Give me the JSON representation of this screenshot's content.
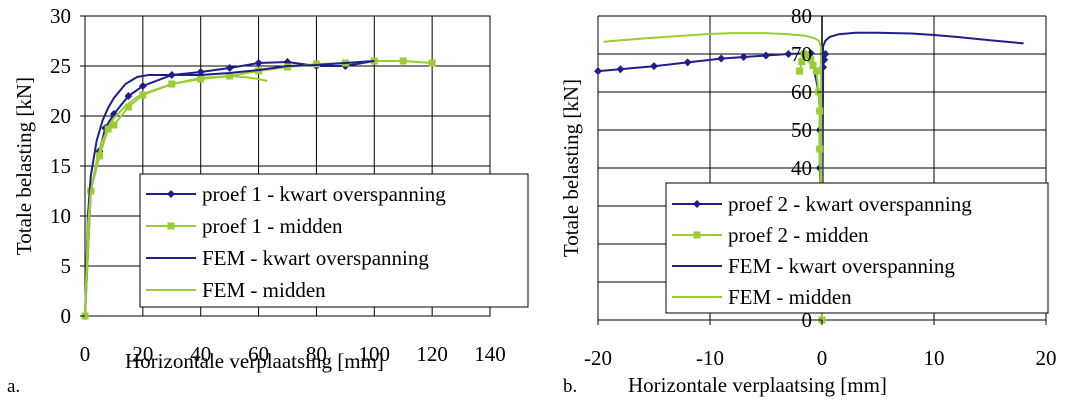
{
  "figures": {
    "a": {
      "label": "a."
    },
    "b": {
      "label": "b."
    }
  },
  "chart_data": [
    {
      "type": "line",
      "xlabel": "Horizontale verplaatsing [mm]",
      "ylabel": "Totale belasting [kN]",
      "xlim": [
        0,
        140
      ],
      "ylim": [
        0,
        30
      ],
      "xticks": [
        0,
        20,
        40,
        60,
        80,
        100,
        120,
        140
      ],
      "yticks": [
        0,
        5,
        10,
        15,
        20,
        25,
        30
      ],
      "grid": true,
      "legend_position": "inside-right",
      "series": [
        {
          "name": "proef 1 - kwart overspanning",
          "color": "#1f1f8c",
          "marker": "diamond",
          "x": [
            0,
            2,
            5,
            7,
            10,
            15,
            20,
            30,
            40,
            50,
            60,
            70,
            80,
            90,
            100
          ],
          "y": [
            0,
            12.5,
            16.5,
            18.8,
            20.2,
            22.0,
            23.0,
            24.1,
            24.4,
            24.8,
            25.3,
            25.4,
            25.0,
            25.0,
            25.5
          ]
        },
        {
          "name": "proef 1 - midden",
          "color": "#9acd32",
          "marker": "square",
          "x": [
            0,
            2,
            5,
            8,
            10,
            15,
            20,
            30,
            40,
            50,
            60,
            70,
            80,
            90,
            100,
            110,
            120
          ],
          "y": [
            0,
            12.5,
            16.0,
            18.7,
            19.1,
            20.9,
            22.1,
            23.2,
            23.7,
            24.0,
            24.5,
            24.9,
            25.2,
            25.3,
            25.5,
            25.5,
            25.3
          ]
        },
        {
          "name": "FEM - kwart overspanning",
          "color": "#1f1f8c",
          "marker": "none",
          "x": [
            0,
            1,
            2,
            4,
            6,
            8,
            10,
            14,
            18,
            22,
            30,
            40,
            50,
            60,
            70,
            80,
            90,
            100
          ],
          "y": [
            0,
            10,
            14,
            17.5,
            19.5,
            20.8,
            21.8,
            23.2,
            23.9,
            24.1,
            24.1,
            24.1,
            24.3,
            24.6,
            25.0,
            25.1,
            25.3,
            25.5
          ]
        },
        {
          "name": "FEM - midden",
          "color": "#9acd32",
          "marker": "none",
          "x": [
            0,
            1,
            2,
            4,
            6,
            8,
            10,
            14,
            18,
            22,
            30,
            40,
            50,
            55,
            60,
            63
          ],
          "y": [
            0,
            9,
            12.5,
            15.5,
            17.5,
            18.8,
            19.8,
            21.0,
            21.9,
            22.4,
            23.2,
            23.8,
            24.0,
            23.9,
            23.7,
            23.5
          ]
        }
      ]
    },
    {
      "type": "line",
      "xlabel": "Horizontale verplaatsing [mm]",
      "ylabel": "Totale belasting [kN]",
      "xlim": [
        -20,
        20
      ],
      "ylim": [
        0,
        80
      ],
      "xticks": [
        -20,
        -10,
        0,
        10,
        20
      ],
      "yticks": [
        0,
        10,
        20,
        30,
        40,
        50,
        60,
        70,
        80
      ],
      "grid": true,
      "legend_position": "lower-right",
      "series": [
        {
          "name": "proef 2 - kwart overspanning",
          "color": "#1f1f8c",
          "marker": "diamond",
          "x": [
            -20,
            -18,
            -15,
            -12,
            -9,
            -7,
            -5,
            -3,
            -1,
            -0.3,
            -0.2,
            -0.2,
            -0.2,
            -0.2,
            -0.1,
            0,
            0.1,
            0.2,
            0.3
          ],
          "y": [
            65.5,
            66.0,
            66.8,
            67.8,
            68.8,
            69.2,
            69.6,
            70.0,
            70.2,
            60,
            55,
            50,
            45,
            40,
            30,
            0,
            66.5,
            68.5,
            70
          ]
        },
        {
          "name": "proef 2 - midden",
          "color": "#9acd32",
          "marker": "square",
          "x": [
            0,
            -0.1,
            -0.2,
            -0.2,
            -0.3,
            -0.5,
            -0.8,
            -1.0,
            -1.3,
            -1.6,
            -1.8,
            -2.0
          ],
          "y": [
            0,
            30,
            45,
            55,
            60,
            65.5,
            67,
            68.5,
            69.5,
            70,
            68,
            65.5
          ]
        },
        {
          "name": "FEM - kwart overspanning",
          "color": "#1f1f8c",
          "marker": "none",
          "x": [
            0,
            0.1,
            0.3,
            0.7,
            1.5,
            3,
            5,
            8,
            10,
            12,
            15,
            18
          ],
          "y": [
            60,
            72,
            73.5,
            74.5,
            75.2,
            75.6,
            75.6,
            75.4,
            75.0,
            74.5,
            73.6,
            72.8
          ]
        },
        {
          "name": "FEM - midden",
          "color": "#9acd32",
          "marker": "none",
          "x": [
            0,
            -0.1,
            -0.3,
            -0.7,
            -1.5,
            -3,
            -5,
            -8,
            -10,
            -12,
            -15,
            -18,
            -19.5
          ],
          "y": [
            0,
            72,
            73.5,
            74.2,
            74.8,
            75.2,
            75.5,
            75.5,
            75.3,
            74.9,
            74.3,
            73.6,
            73.2
          ]
        }
      ]
    }
  ]
}
